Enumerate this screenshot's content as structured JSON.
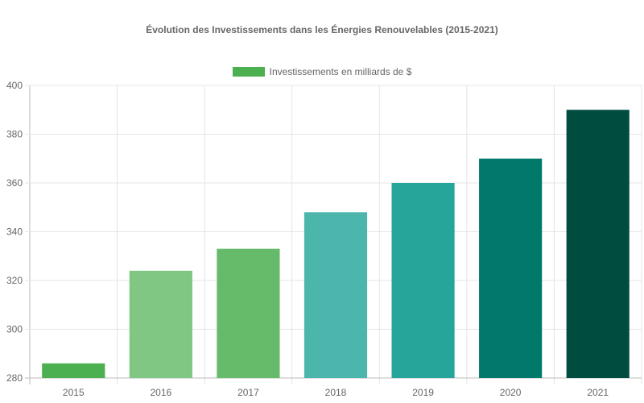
{
  "chart_data": {
    "type": "bar",
    "title": "Évolution des Investissements dans les Énergies Renouvelables (2015-2021)",
    "categories": [
      "2015",
      "2016",
      "2017",
      "2018",
      "2019",
      "2020",
      "2021"
    ],
    "series": [
      {
        "name": "Investissements en milliards de $",
        "values": [
          286,
          324,
          333,
          348,
          360,
          370,
          390
        ]
      }
    ],
    "bar_colors": [
      "#4caf50",
      "#81c784",
      "#66bb6a",
      "#4db6ac",
      "#26a69a",
      "#00796b",
      "#004d40"
    ],
    "legend_color": "#4caf50",
    "ylim": [
      280,
      400
    ],
    "yticks": [
      280,
      300,
      320,
      340,
      360,
      380,
      400
    ],
    "grid": true,
    "legend_position": "top"
  }
}
